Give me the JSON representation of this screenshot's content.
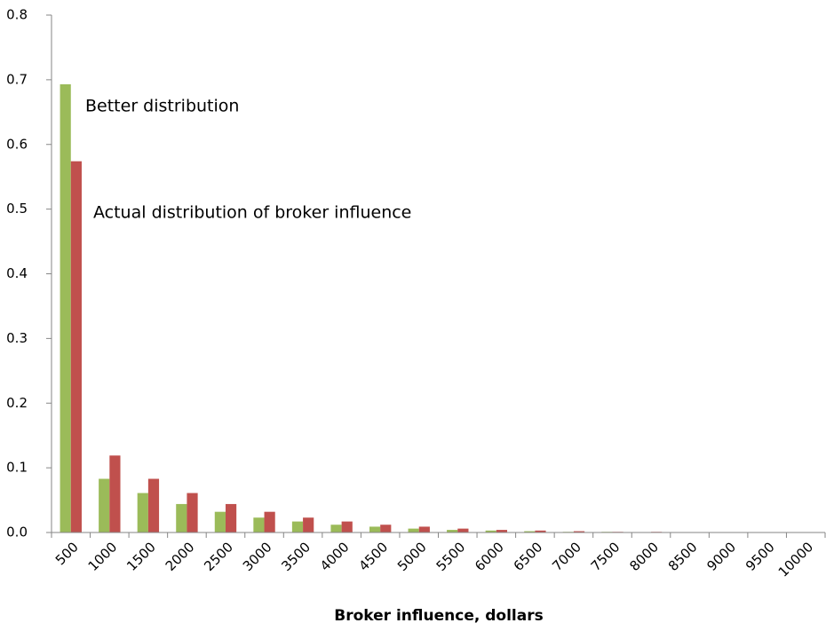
{
  "chart_data": {
    "type": "bar",
    "x_label": "Broker influence, dollars",
    "categories": [
      "500",
      "1000",
      "1500",
      "2000",
      "2500",
      "3000",
      "3500",
      "4000",
      "4500",
      "5000",
      "5500",
      "6000",
      "6500",
      "7000",
      "7500",
      "8000",
      "8500",
      "9000",
      "9500",
      "10000"
    ],
    "series": [
      {
        "name": "Better distribution",
        "color": "#9bbb59",
        "values": [
          0.693,
          0.083,
          0.061,
          0.044,
          0.032,
          0.023,
          0.017,
          0.012,
          0.009,
          0.006,
          0.004,
          0.003,
          0.002,
          0.001,
          0.001,
          0.0005,
          0.0003,
          0.0002,
          0.0001,
          0.0001
        ]
      },
      {
        "name": "Actual distribution of broker influence",
        "color": "#c0504d",
        "values": [
          0.574,
          0.119,
          0.083,
          0.061,
          0.044,
          0.032,
          0.023,
          0.017,
          0.012,
          0.009,
          0.006,
          0.004,
          0.003,
          0.002,
          0.001,
          0.001,
          0.0005,
          0.0003,
          0.0002,
          0.0001
        ]
      }
    ],
    "ylim": [
      0,
      0.8
    ],
    "yticks": [
      {
        "value": 0,
        "label": "0.0"
      },
      0.1,
      0.2,
      0.3,
      0.4,
      0.5,
      0.6,
      0.7,
      0.8
    ]
  }
}
